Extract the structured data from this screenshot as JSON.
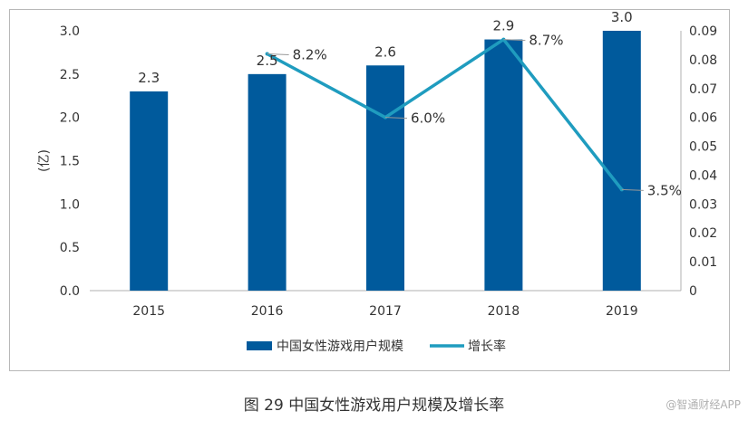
{
  "chart_data": {
    "type": "bar+line",
    "categories": [
      "2015",
      "2016",
      "2017",
      "2018",
      "2019"
    ],
    "series": [
      {
        "name": "中国女性游戏用户规模",
        "type": "bar",
        "axis": "left",
        "values": [
          2.3,
          2.5,
          2.6,
          2.9,
          3.0
        ],
        "data_labels": [
          "2.3",
          "2.5",
          "2.6",
          "2.9",
          "3.0"
        ]
      },
      {
        "name": "增长率",
        "type": "line",
        "axis": "right",
        "values": [
          null,
          0.082,
          0.06,
          0.087,
          0.035
        ],
        "data_labels": [
          "",
          "8.2%",
          "6.0%",
          "8.7%",
          "3.5%"
        ]
      }
    ],
    "ylabel": "(亿)",
    "ylim": [
      0,
      3.0
    ],
    "y_ticks": [
      "0.0",
      "0.5",
      "1.0",
      "1.5",
      "2.0",
      "2.5",
      "3.0"
    ],
    "y2lim": [
      0,
      0.09
    ],
    "y2_ticks": [
      "0",
      "0.01",
      "0.02",
      "0.03",
      "0.04",
      "0.05",
      "0.06",
      "0.07",
      "0.08",
      "0.09"
    ],
    "legend_position": "bottom",
    "grid": false
  },
  "caption": "图 29 中国女性游戏用户规模及增长率",
  "watermark": "@智通财经APP",
  "colors": {
    "bar": "#005a9c",
    "line": "#1f9cbf",
    "axis": "#b0b0b0",
    "text": "#333333"
  }
}
